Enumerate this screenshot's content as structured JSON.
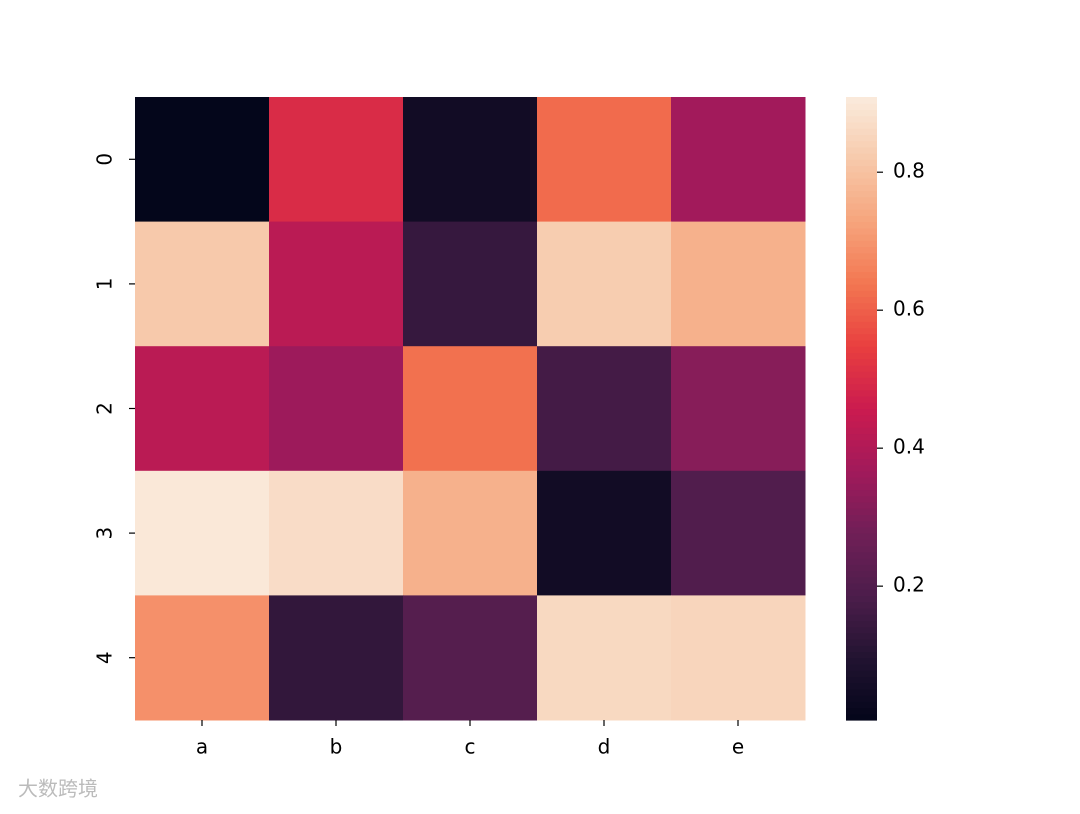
{
  "chart_data": {
    "type": "heatmap",
    "x": [
      "a",
      "b",
      "c",
      "d",
      "e"
    ],
    "y": [
      "0",
      "1",
      "2",
      "3",
      "4"
    ],
    "values": [
      [
        0.01,
        0.5,
        0.05,
        0.62,
        0.37
      ],
      [
        0.82,
        0.42,
        0.14,
        0.83,
        0.76
      ],
      [
        0.42,
        0.36,
        0.63,
        0.17,
        0.32
      ],
      [
        0.9,
        0.87,
        0.76,
        0.05,
        0.2
      ],
      [
        0.69,
        0.13,
        0.21,
        0.86,
        0.85
      ]
    ],
    "clim": [
      0.006,
      0.909
    ],
    "cticks": [
      0.2,
      0.4,
      0.6,
      0.8
    ],
    "colorscale": [
      "#03051a",
      "#221331",
      "#4c1d4b",
      "#701f57",
      "#a11a5b",
      "#cb1b4f",
      "#e83f3f",
      "#f37651",
      "#f6a47c",
      "#f7c9aa",
      "#faebdd"
    ],
    "watermark": "大数跨境"
  }
}
